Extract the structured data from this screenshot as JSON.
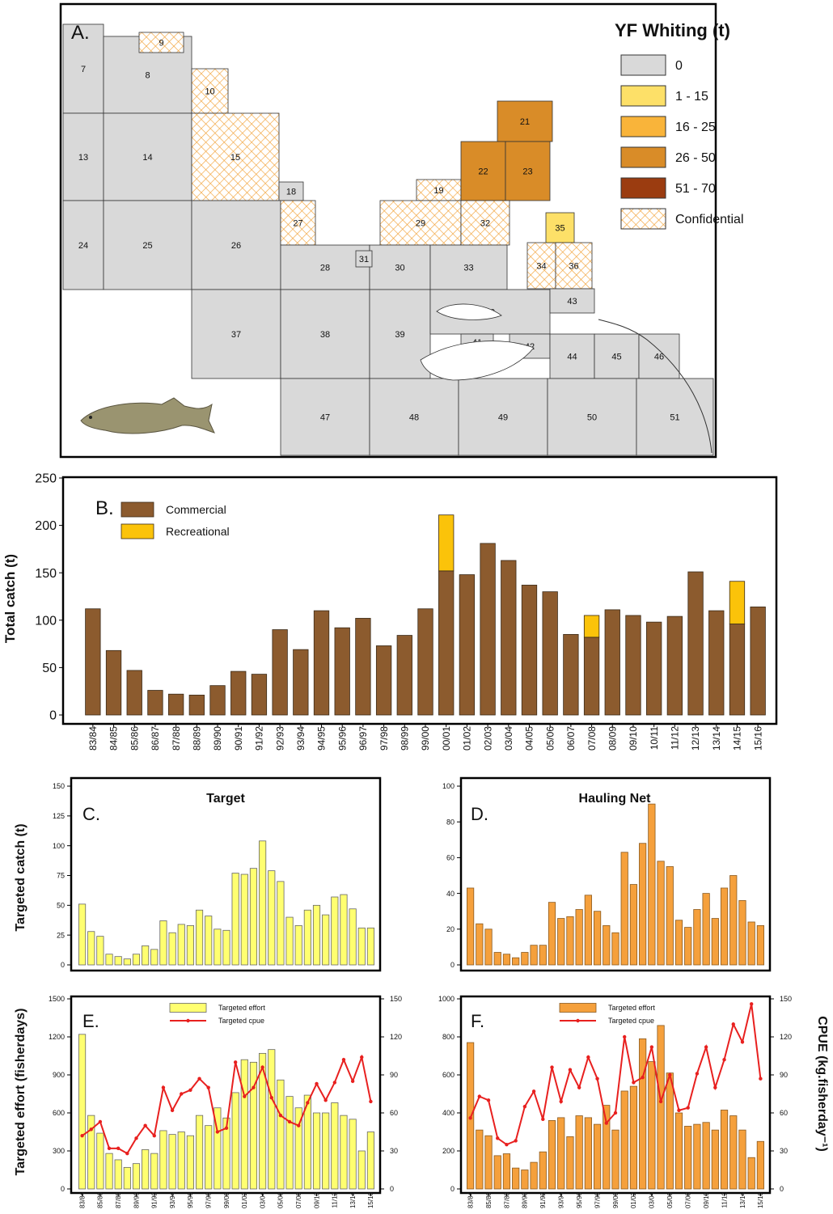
{
  "map": {
    "panel_label": "A.",
    "legend": {
      "title": "YF Whiting (t)",
      "items": [
        {
          "label": "0",
          "color": "#d9d9d9"
        },
        {
          "label": "1 - 15",
          "color": "#fde068"
        },
        {
          "label": "16 - 25",
          "color": "#f9b43a"
        },
        {
          "label": "26 - 50",
          "color": "#d98c28"
        },
        {
          "label": "51 - 70",
          "color": "#9b3c10"
        },
        {
          "label": "Confidential",
          "pattern": "crosshatch",
          "color": "#f2a33a"
        }
      ]
    },
    "blocks": [
      {
        "label": "7",
        "class": "0"
      },
      {
        "label": "8",
        "class": "0"
      },
      {
        "label": "9",
        "class": "Confidential"
      },
      {
        "label": "10",
        "class": "Confidential"
      },
      {
        "label": "13",
        "class": "0"
      },
      {
        "label": "14",
        "class": "0"
      },
      {
        "label": "15",
        "class": "Confidential"
      },
      {
        "label": "18",
        "class": "0"
      },
      {
        "label": "19",
        "class": "Confidential"
      },
      {
        "label": "21",
        "class": "26 - 50"
      },
      {
        "label": "22",
        "class": "26 - 50"
      },
      {
        "label": "23",
        "class": "26 - 50"
      },
      {
        "label": "24",
        "class": "0"
      },
      {
        "label": "25",
        "class": "0"
      },
      {
        "label": "26",
        "class": "0"
      },
      {
        "label": "27",
        "class": "Confidential"
      },
      {
        "label": "28",
        "class": "0"
      },
      {
        "label": "29",
        "class": "Confidential"
      },
      {
        "label": "30",
        "class": "0"
      },
      {
        "label": "31",
        "class": "0"
      },
      {
        "label": "32",
        "class": "Confidential"
      },
      {
        "label": "33",
        "class": "0"
      },
      {
        "label": "34",
        "class": "Confidential"
      },
      {
        "label": "35",
        "class": "1 - 15"
      },
      {
        "label": "36",
        "class": "Confidential"
      },
      {
        "label": "37",
        "class": "0"
      },
      {
        "label": "38",
        "class": "0"
      },
      {
        "label": "39",
        "class": "0"
      },
      {
        "label": "40",
        "class": "0"
      },
      {
        "label": "41",
        "class": "0"
      },
      {
        "label": "42",
        "class": "0"
      },
      {
        "label": "43",
        "class": "0"
      },
      {
        "label": "44",
        "class": "0"
      },
      {
        "label": "45",
        "class": "0"
      },
      {
        "label": "46",
        "class": "0"
      },
      {
        "label": "47",
        "class": "0"
      },
      {
        "label": "48",
        "class": "0"
      },
      {
        "label": "49",
        "class": "0"
      },
      {
        "label": "50",
        "class": "0"
      },
      {
        "label": "51",
        "class": "0"
      }
    ]
  },
  "chart_data": [
    {
      "type": "bar",
      "panel_label": "B.",
      "y_label": "Total catch (t)",
      "stacked": true,
      "legend": "upper left",
      "edgecolor": "#3a2a18",
      "categories": [
        "83/84",
        "84/85",
        "85/86",
        "86/87",
        "87/88",
        "88/89",
        "89/90",
        "90/91",
        "91/92",
        "92/93",
        "93/94",
        "94/95",
        "95/96",
        "96/97",
        "97/98",
        "98/99",
        "99/00",
        "00/01",
        "01/02",
        "02/03",
        "03/04",
        "04/05",
        "05/06",
        "06/07",
        "07/08",
        "08/09",
        "09/10",
        "10/11",
        "11/12",
        "12/13",
        "13/14",
        "14/15",
        "15/16"
      ],
      "series": [
        {
          "name": "Commercial",
          "color": "#8c5b2e",
          "values": [
            112,
            68,
            47,
            26,
            22,
            21,
            31,
            46,
            43,
            90,
            69,
            110,
            92,
            102,
            73,
            84,
            112,
            152,
            148,
            181,
            163,
            137,
            130,
            85,
            82,
            111,
            105,
            98,
            104,
            151,
            110,
            96,
            114
          ]
        },
        {
          "name": "Recreational",
          "color": "#fbc30a",
          "values": [
            0,
            0,
            0,
            0,
            0,
            0,
            0,
            0,
            0,
            0,
            0,
            0,
            0,
            0,
            0,
            0,
            0,
            59,
            0,
            0,
            0,
            0,
            0,
            0,
            23,
            0,
            0,
            0,
            0,
            0,
            0,
            45,
            0
          ]
        }
      ],
      "ylim": [
        0,
        250
      ],
      "yticks": [
        0,
        50,
        100,
        150,
        200,
        250
      ]
    },
    {
      "type": "bar",
      "panel_label": "C.",
      "title": "Target",
      "y_label": "Targeted catch (t)",
      "color": "#ffff70",
      "edgecolor": "#666666",
      "values": [
        51,
        28,
        24,
        9,
        7,
        5,
        9,
        16,
        13,
        37,
        27,
        34,
        33,
        46,
        41,
        30,
        29,
        77,
        76,
        81,
        104,
        79,
        70,
        40,
        33,
        46,
        50,
        42,
        57,
        59,
        47,
        31,
        31
      ],
      "ylim": [
        0,
        150
      ],
      "yticks": [
        0,
        25,
        50,
        75,
        100,
        125,
        150
      ]
    },
    {
      "type": "bar",
      "panel_label": "D.",
      "title": "Hauling Net",
      "color": "#f5a03c",
      "edgecolor": "#8a5a20",
      "values": [
        43,
        23,
        20,
        7,
        6,
        4,
        7,
        11,
        11,
        35,
        26,
        27,
        31,
        39,
        30,
        22,
        18,
        63,
        45,
        68,
        90,
        58,
        55,
        25,
        21,
        31,
        40,
        26,
        43,
        50,
        36,
        24,
        22
      ],
      "ylim": [
        0,
        100
      ],
      "yticks": [
        0,
        20,
        40,
        60,
        80,
        100
      ]
    },
    {
      "type": "combo",
      "panel_label": "E.",
      "y_label": "Targeted effort (fisherdays)",
      "legend": "upper center",
      "edgecolor": "#666666",
      "categories": [
        "83/84",
        null,
        "85/86",
        null,
        "87/88",
        null,
        "89/90",
        null,
        "91/92",
        null,
        "93/94",
        null,
        "95/96",
        null,
        "97/98",
        null,
        "99/00",
        null,
        "01/02",
        null,
        "03/04",
        null,
        "05/06",
        null,
        "07/08",
        null,
        "09/10",
        null,
        "11/12",
        null,
        "13/14",
        null,
        "15/16"
      ],
      "series": [
        {
          "name": "Targeted effort",
          "type": "bar",
          "color": "#ffff70",
          "values": [
            1220,
            580,
            440,
            280,
            230,
            170,
            200,
            310,
            280,
            460,
            430,
            450,
            420,
            580,
            500,
            640,
            560,
            760,
            1020,
            1000,
            1070,
            1100,
            860,
            730,
            640,
            740,
            600,
            600,
            680,
            580,
            550,
            300,
            450
          ]
        },
        {
          "name": "Targeted cpue",
          "type": "line",
          "axis": "y2",
          "color": "#e8201f",
          "values": [
            42,
            47,
            53,
            32,
            32,
            28,
            40,
            50,
            42,
            80,
            62,
            75,
            78,
            87,
            80,
            45,
            48,
            100,
            73,
            80,
            96,
            72,
            58,
            53,
            50,
            68,
            83,
            70,
            84,
            102,
            85,
            104,
            69
          ]
        }
      ],
      "ylim": [
        0,
        1500
      ],
      "yticks": [
        0,
        300,
        600,
        900,
        1200,
        1500
      ],
      "y2lim": [
        0,
        150
      ],
      "y2ticks": [
        0,
        30,
        60,
        90,
        120,
        150
      ]
    },
    {
      "type": "combo",
      "panel_label": "F.",
      "y2_label": "CPUE (kg.fisherday⁻¹)",
      "legend": "upper center",
      "edgecolor": "#8a5a20",
      "categories": [
        "83/84",
        null,
        "85/86",
        null,
        "87/88",
        null,
        "89/90",
        null,
        "91/92",
        null,
        "93/94",
        null,
        "95/96",
        null,
        "97/98",
        null,
        "99/00",
        null,
        "01/02",
        null,
        "03/04",
        null,
        "05/06",
        null,
        "07/08",
        null,
        "09/10",
        null,
        "11/12",
        null,
        "13/14",
        null,
        "15/16"
      ],
      "series": [
        {
          "name": "Targeted effort",
          "type": "bar",
          "color": "#f5a03c",
          "values": [
            770,
            310,
            280,
            175,
            185,
            110,
            100,
            140,
            195,
            360,
            375,
            275,
            385,
            375,
            340,
            440,
            310,
            515,
            540,
            790,
            670,
            860,
            610,
            400,
            330,
            340,
            350,
            310,
            415,
            385,
            310,
            165,
            250
          ]
        },
        {
          "name": "Targeted cpue",
          "type": "line",
          "axis": "y2",
          "color": "#e8201f",
          "values": [
            56,
            73,
            70,
            40,
            35,
            38,
            65,
            77,
            55,
            96,
            69,
            94,
            80,
            104,
            87,
            52,
            60,
            120,
            84,
            88,
            112,
            69,
            90,
            62,
            64,
            91,
            112,
            80,
            102,
            130,
            116,
            146,
            87
          ]
        }
      ],
      "ylim": [
        0,
        1000
      ],
      "yticks": [
        0,
        200,
        400,
        600,
        800,
        1000
      ],
      "y2lim": [
        0,
        150
      ],
      "y2ticks": [
        0,
        30,
        60,
        90,
        120,
        150
      ]
    }
  ]
}
